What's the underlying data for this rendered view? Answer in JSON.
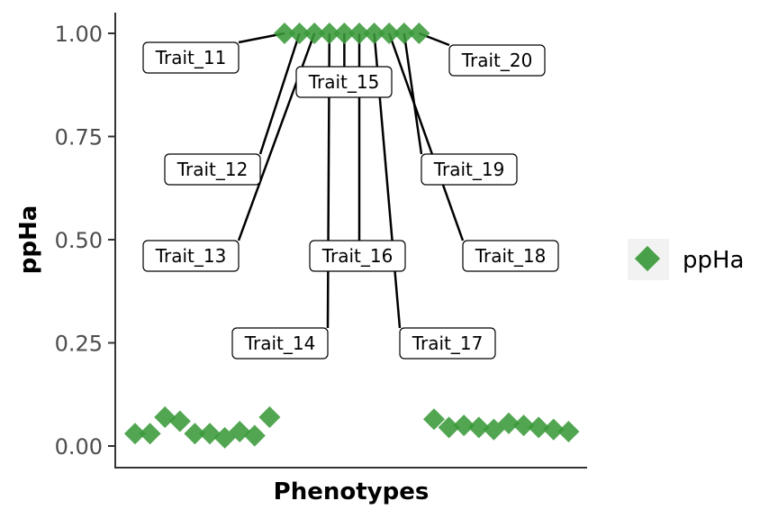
{
  "chart_data": {
    "type": "scatter",
    "xlabel": "Phenotypes",
    "ylabel": "ppHa",
    "ylim": [
      -0.05,
      1.05
    ],
    "y_ticks": [
      "0.00",
      "0.25",
      "0.50",
      "0.75",
      "1.00"
    ],
    "y_tick_values": [
      0,
      0.25,
      0.5,
      0.75,
      1.0
    ],
    "legend": {
      "label": "ppHa",
      "position": "right"
    },
    "marker_color": "#3a9a3a",
    "marker_shape": "diamond",
    "grid": false,
    "series": [
      {
        "name": "ppHa",
        "values": [
          0.03,
          0.03,
          0.07,
          0.06,
          0.03,
          0.03,
          0.02,
          0.035,
          0.025,
          0.07,
          1.0,
          1.0,
          1.0,
          1.0,
          1.0,
          1.0,
          1.0,
          1.0,
          1.0,
          1.0,
          0.065,
          0.045,
          0.05,
          0.045,
          0.04,
          0.055,
          0.05,
          0.045,
          0.04,
          0.035
        ]
      }
    ],
    "annotations": [
      {
        "label": "Trait_11",
        "index": 10
      },
      {
        "label": "Trait_12",
        "index": 11
      },
      {
        "label": "Trait_13",
        "index": 12
      },
      {
        "label": "Trait_14",
        "index": 13
      },
      {
        "label": "Trait_15",
        "index": 14
      },
      {
        "label": "Trait_16",
        "index": 15
      },
      {
        "label": "Trait_17",
        "index": 16
      },
      {
        "label": "Trait_18",
        "index": 17
      },
      {
        "label": "Trait_19",
        "index": 18
      },
      {
        "label": "Trait_20",
        "index": 19
      }
    ]
  }
}
